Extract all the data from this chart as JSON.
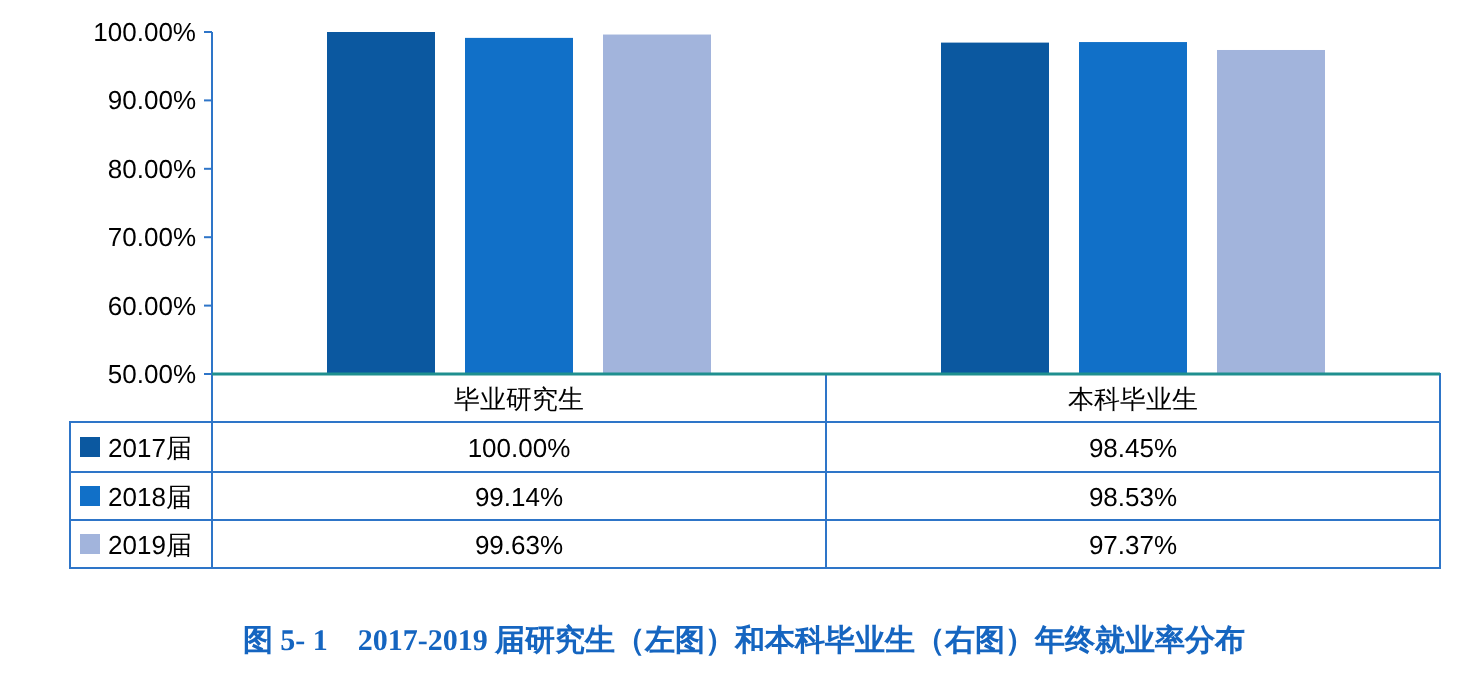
{
  "chart_data": {
    "type": "bar",
    "title": "图 5- 1    2017-2019 届研究生（左图）和本科毕业生（右图）年终就业率分布",
    "categories": [
      "毕业研究生",
      "本科毕业生"
    ],
    "series": [
      {
        "name": "2017届",
        "color": "#0b58a0",
        "values": [
          100.0,
          98.45
        ],
        "value_labels": [
          "100.00%",
          "98.45%"
        ]
      },
      {
        "name": "2018届",
        "color": "#1170c8",
        "values": [
          99.14,
          98.53
        ],
        "value_labels": [
          "99.14%",
          "98.53%"
        ]
      },
      {
        "name": "2019届",
        "color": "#a2b4dc",
        "values": [
          99.63,
          97.37
        ],
        "value_labels": [
          "99.63%",
          "97.37%"
        ]
      }
    ],
    "ylim": [
      50,
      100
    ],
    "yticks": [
      {
        "value": 50,
        "label": "50.00%"
      },
      {
        "value": 60,
        "label": "60.00%"
      },
      {
        "value": 70,
        "label": "70.00%"
      },
      {
        "value": 80,
        "label": "80.00%"
      },
      {
        "value": 90,
        "label": "90.00%"
      },
      {
        "value": 100,
        "label": "100.00%"
      }
    ],
    "legend": "left",
    "grid": false
  }
}
